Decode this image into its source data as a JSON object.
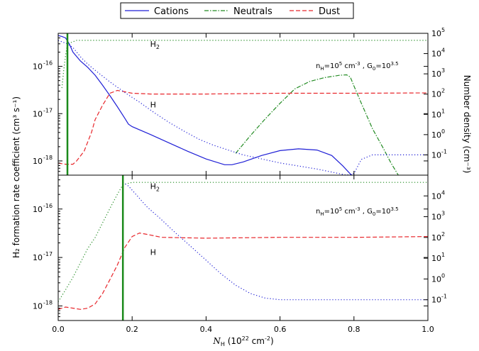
{
  "legend": {
    "items": [
      {
        "label": "Cations",
        "color": "#1f1fd6",
        "style": "solid"
      },
      {
        "label": "Neutrals",
        "color": "#228b22",
        "style": "dashdot"
      },
      {
        "label": "Dust",
        "color": "#e8262b",
        "style": "dashed"
      }
    ]
  },
  "axes": {
    "xlabel_main": "N",
    "xlabel_sub": "H",
    "xlabel_unit": " (10",
    "xlabel_exp": "22",
    "xlabel_tail": "  cm",
    "xlabel_exp2": "-2",
    "xlabel_close": ")",
    "ylabel_left": "H₂ formation rate coefficient (cm³ s⁻¹)",
    "ylabel_right": "Number density (cm⁻³)"
  },
  "colors": {
    "cations": "#1f1fd6",
    "neutrals": "#228b22",
    "dust": "#e8262b",
    "marker": "#1a8a1a"
  },
  "chart_data": [
    {
      "type": "line",
      "panel": "top",
      "xlim": [
        0,
        1.0
      ],
      "ylim_left": [
        5e-19,
        5e-16
      ],
      "ylim_right": [
        0.01,
        100000
      ],
      "yscale": "log",
      "annotation": {
        "n": "n",
        "n_sub": "H",
        "eq1": "=10",
        "exp1": "5",
        "unit1": " cm",
        "exp2": "-3",
        "sep": " , G",
        "g_sub": "0",
        "eq2": "=10",
        "exp3": "3.5"
      },
      "species_labels": [
        {
          "text": "H",
          "sub": "2",
          "x": 0.3,
          "y": 30000
        },
        {
          "text": "H",
          "sub": "",
          "x": 0.3,
          "y": 30
        }
      ],
      "right_ticks": [
        "10",
        "10",
        "10",
        "10",
        "10",
        "10",
        "10",
        "10"
      ],
      "right_exps": [
        "5",
        "4",
        "3",
        "2",
        "1",
        "0",
        "-1",
        ""
      ],
      "marker_x": 0.025,
      "series": [
        {
          "name": "Cations",
          "axis": "left",
          "points": [
            [
              0,
              4.5e-16
            ],
            [
              0.01,
              4.3e-16
            ],
            [
              0.02,
              4e-16
            ],
            [
              0.03,
              3e-16
            ],
            [
              0.04,
              2e-16
            ],
            [
              0.06,
              1.3e-16
            ],
            [
              0.08,
              9.5e-17
            ],
            [
              0.1,
              6.5e-17
            ],
            [
              0.12,
              4e-17
            ],
            [
              0.14,
              2.4e-17
            ],
            [
              0.16,
              1.4e-17
            ],
            [
              0.18,
              8e-18
            ],
            [
              0.19,
              6e-18
            ],
            [
              0.2,
              5.3e-18
            ],
            [
              0.25,
              3.6e-18
            ],
            [
              0.3,
              2.4e-18
            ],
            [
              0.35,
              1.6e-18
            ],
            [
              0.4,
              1.1e-18
            ],
            [
              0.45,
              8.3e-19
            ],
            [
              0.47,
              8.3e-19
            ],
            [
              0.5,
              9.5e-19
            ],
            [
              0.55,
              1.3e-18
            ],
            [
              0.6,
              1.65e-18
            ],
            [
              0.65,
              1.8e-18
            ],
            [
              0.7,
              1.7e-18
            ],
            [
              0.74,
              1.3e-18
            ],
            [
              0.77,
              7.8e-19
            ],
            [
              0.79,
              5.3e-19
            ],
            [
              0.795,
              5e-19
            ]
          ]
        },
        {
          "name": "Neutrals",
          "axis": "right",
          "points": [
            [
              0.48,
              0.12
            ],
            [
              0.52,
              0.9
            ],
            [
              0.56,
              6
            ],
            [
              0.6,
              35
            ],
            [
              0.64,
              180
            ],
            [
              0.68,
              420
            ],
            [
              0.72,
              650
            ],
            [
              0.76,
              850
            ],
            [
              0.78,
              900
            ],
            [
              0.79,
              700
            ],
            [
              0.8,
              250
            ],
            [
              0.82,
              35
            ],
            [
              0.85,
              2
            ],
            [
              0.88,
              0.2
            ],
            [
              0.9,
              0.04
            ],
            [
              0.92,
              0.01
            ]
          ]
        },
        {
          "name": "Dust",
          "axis": "left",
          "points": [
            [
              0,
              9e-19
            ],
            [
              0.02,
              8.5e-19
            ],
            [
              0.04,
              8.5e-19
            ],
            [
              0.05,
              1e-18
            ],
            [
              0.07,
              1.6e-18
            ],
            [
              0.09,
              4e-18
            ],
            [
              0.1,
              7.5e-18
            ],
            [
              0.12,
              1.5e-17
            ],
            [
              0.14,
              2.7e-17
            ],
            [
              0.16,
              3.1e-17
            ],
            [
              0.18,
              2.9e-17
            ],
            [
              0.2,
              2.7e-17
            ],
            [
              0.25,
              2.6e-17
            ],
            [
              0.4,
              2.6e-17
            ],
            [
              0.6,
              2.7e-17
            ],
            [
              0.8,
              2.7e-17
            ],
            [
              1.0,
              2.75e-17
            ]
          ]
        },
        {
          "name": "H2",
          "axis": "right",
          "points": [
            [
              0.01,
              200
            ],
            [
              0.015,
              1500
            ],
            [
              0.02,
              8000
            ],
            [
              0.025,
              30000
            ],
            [
              0.05,
              45000
            ],
            [
              0.1,
              45000
            ],
            [
              0.2,
              45000
            ],
            [
              0.5,
              45000
            ],
            [
              1.0,
              45000
            ]
          ]
        },
        {
          "name": "H",
          "axis": "right",
          "points": [
            [
              0,
              45000
            ],
            [
              0.025,
              30000
            ],
            [
              0.04,
              20000
            ],
            [
              0.06,
              7000
            ],
            [
              0.08,
              3000
            ],
            [
              0.1,
              1500
            ],
            [
              0.14,
              400
            ],
            [
              0.18,
              120
            ],
            [
              0.22,
              40
            ],
            [
              0.26,
              12
            ],
            [
              0.3,
              4
            ],
            [
              0.34,
              1.5
            ],
            [
              0.38,
              0.6
            ],
            [
              0.42,
              0.3
            ],
            [
              0.5,
              0.1
            ],
            [
              0.6,
              0.04
            ],
            [
              0.7,
              0.02
            ],
            [
              0.78,
              0.01
            ],
            [
              0.8,
              0.012
            ],
            [
              0.82,
              0.06
            ],
            [
              0.85,
              0.1
            ],
            [
              1.0,
              0.1
            ]
          ]
        }
      ]
    },
    {
      "type": "line",
      "panel": "bottom",
      "xlim": [
        0,
        1.0
      ],
      "ylim_left": [
        5e-19,
        5e-16
      ],
      "ylim_right": [
        0.01,
        100000
      ],
      "yscale": "log",
      "annotation": {
        "n": "n",
        "n_sub": "H",
        "eq1": "=10",
        "exp1": "5",
        "unit1": " cm",
        "exp2": "-3",
        "sep": " , G",
        "g_sub": "0",
        "eq2": "=10",
        "exp3": "3.5"
      },
      "species_labels": [
        {
          "text": "H",
          "sub": "2",
          "x": 0.3,
          "y": 30000
        },
        {
          "text": "H",
          "sub": "",
          "x": 0.3,
          "y": 20
        }
      ],
      "right_ticks": [
        "10",
        "10",
        "10",
        "10",
        "10",
        "10",
        "10"
      ],
      "right_exps": [
        "4",
        "3",
        "2",
        "1",
        "0",
        "-1",
        ""
      ],
      "marker_x": 0.175,
      "series": [
        {
          "name": "Dust",
          "axis": "left",
          "points": [
            [
              0,
              8.5e-19
            ],
            [
              0.02,
              9.5e-19
            ],
            [
              0.04,
              9e-19
            ],
            [
              0.06,
              8.5e-19
            ],
            [
              0.08,
              9e-19
            ],
            [
              0.1,
              1.1e-18
            ],
            [
              0.12,
              1.8e-18
            ],
            [
              0.14,
              3.5e-18
            ],
            [
              0.16,
              7e-18
            ],
            [
              0.18,
              1.6e-17
            ],
            [
              0.2,
              2.7e-17
            ],
            [
              0.22,
              3.2e-17
            ],
            [
              0.24,
              3e-17
            ],
            [
              0.28,
              2.6e-17
            ],
            [
              0.4,
              2.5e-17
            ],
            [
              0.6,
              2.6e-17
            ],
            [
              0.8,
              2.6e-17
            ],
            [
              1.0,
              2.7e-17
            ]
          ]
        },
        {
          "name": "H2",
          "axis": "right",
          "points": [
            [
              0,
              0.08
            ],
            [
              0.02,
              0.3
            ],
            [
              0.04,
              1.2
            ],
            [
              0.06,
              6
            ],
            [
              0.08,
              30
            ],
            [
              0.1,
              100
            ],
            [
              0.12,
              500
            ],
            [
              0.14,
              2500
            ],
            [
              0.16,
              12000
            ],
            [
              0.175,
              35000
            ],
            [
              0.2,
              45000
            ],
            [
              0.3,
              45000
            ],
            [
              1.0,
              45000
            ]
          ]
        },
        {
          "name": "H",
          "axis": "right",
          "points": [
            [
              0.175,
              45000
            ],
            [
              0.19,
              30000
            ],
            [
              0.21,
              12000
            ],
            [
              0.24,
              3000
            ],
            [
              0.28,
              700
            ],
            [
              0.32,
              150
            ],
            [
              0.36,
              35
            ],
            [
              0.4,
              8
            ],
            [
              0.44,
              1.8
            ],
            [
              0.48,
              0.5
            ],
            [
              0.52,
              0.2
            ],
            [
              0.56,
              0.12
            ],
            [
              0.6,
              0.1
            ],
            [
              1.0,
              0.1
            ]
          ]
        }
      ]
    }
  ]
}
